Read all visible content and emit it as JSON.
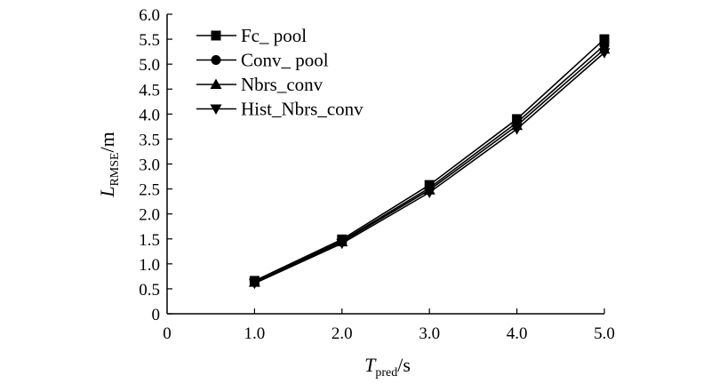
{
  "chart_data": {
    "type": "line",
    "x": [
      1.0,
      2.0,
      3.0,
      4.0,
      5.0
    ],
    "xticks": [
      0,
      1.0,
      2.0,
      3.0,
      4.0,
      5.0
    ],
    "xtick_labels": [
      "0",
      "1.0",
      "2.0",
      "3.0",
      "4.0",
      "5.0"
    ],
    "yticks": [
      0,
      0.5,
      1.0,
      1.5,
      2.0,
      2.5,
      3.0,
      3.5,
      4.0,
      4.5,
      5.0,
      5.5,
      6.0
    ],
    "ytick_labels": [
      "0",
      "0.5",
      "1.0",
      "1.5",
      "2.0",
      "2.5",
      "3.0",
      "3.5",
      "4.0",
      "4.5",
      "5.0",
      "5.5",
      "6.0"
    ],
    "xlim": [
      0,
      5.0
    ],
    "ylim": [
      0,
      6.0
    ],
    "xlabel": {
      "main": "T",
      "sub": "pred",
      "unit": "/s"
    },
    "ylabel": {
      "main": "L",
      "sub": "RMSE",
      "unit": "/m"
    },
    "legend_position": "top-left",
    "grid": false,
    "series": [
      {
        "name": "Fc_ pool",
        "marker": "square",
        "values": [
          0.66,
          1.49,
          2.58,
          3.9,
          5.5
        ]
      },
      {
        "name": "Conv_ pool",
        "marker": "circle",
        "values": [
          0.64,
          1.46,
          2.52,
          3.83,
          5.38
        ]
      },
      {
        "name": "Nbrs_conv",
        "marker": "triangle-up",
        "values": [
          0.63,
          1.44,
          2.48,
          3.77,
          5.3
        ]
      },
      {
        "name": "Hist_Nbrs_conv",
        "marker": "triangle-down",
        "values": [
          0.61,
          1.41,
          2.43,
          3.7,
          5.23
        ]
      }
    ]
  }
}
